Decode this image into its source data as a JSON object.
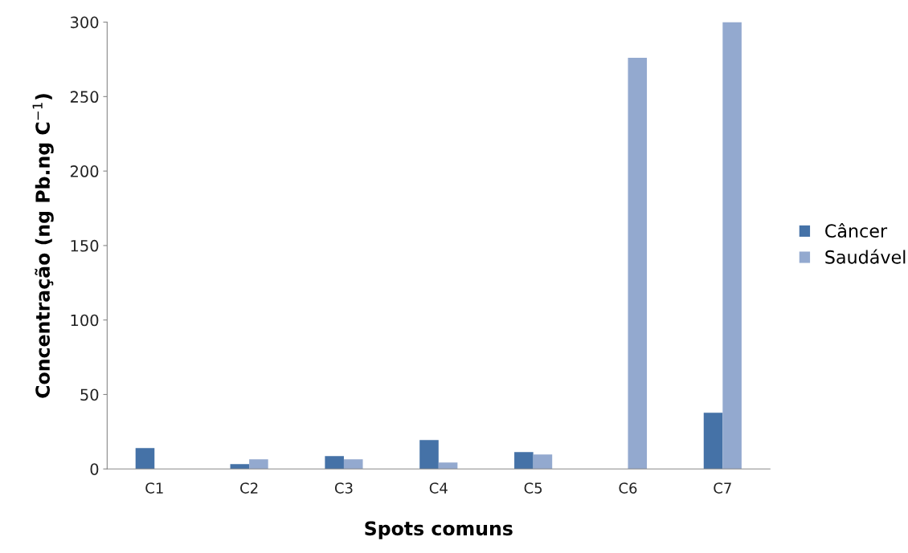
{
  "chart_data": {
    "type": "bar",
    "xlabel": "Spots comuns",
    "ylabel": "Concentração (ng Pb.ng C$^{−1}$)",
    "categories": [
      "C1",
      "C2",
      "C3",
      "C4",
      "C5",
      "C6",
      "C7"
    ],
    "series": [
      {
        "name": "Câncer",
        "color": "#4572a7",
        "values": [
          14,
          3.2,
          8.6,
          19.4,
          11.3,
          null,
          37.7
        ]
      },
      {
        "name": "Saudável",
        "color": "#93a9cf",
        "values": [
          null,
          6.5,
          6.5,
          4.3,
          9.7,
          276,
          300
        ]
      }
    ],
    "ylim": [
      0,
      300
    ],
    "yticks": [
      0,
      50,
      100,
      150,
      200,
      250,
      300
    ],
    "grid": false,
    "legend": "right"
  }
}
